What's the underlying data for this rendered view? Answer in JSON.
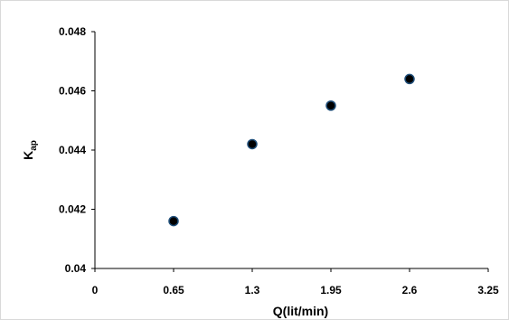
{
  "chart_data": {
    "type": "scatter",
    "title": "",
    "xlabel": "Q(lit/min)",
    "ylabel_main": "K",
    "ylabel_sub": "ap",
    "xlim": [
      0,
      3.25
    ],
    "ylim": [
      0.04,
      0.048
    ],
    "x_ticks": [
      "0",
      "0.65",
      "1.3",
      "1.95",
      "2.6",
      "3.25"
    ],
    "x_tick_values": [
      0,
      0.65,
      1.3,
      1.95,
      2.6,
      3.25
    ],
    "y_ticks": [
      "0.04",
      "0.042",
      "0.044",
      "0.046",
      "0.048"
    ],
    "y_tick_values": [
      0.04,
      0.042,
      0.044,
      0.046,
      0.048
    ],
    "grid": false,
    "legend": "none",
    "series": [
      {
        "x": [
          0.65,
          1.3,
          1.95,
          2.6
        ],
        "y": [
          0.0416,
          0.0442,
          0.0455,
          0.0464
        ]
      }
    ],
    "colors": {
      "marker_fill": "#000000",
      "marker_stroke": "#1f4e79",
      "axis": "#000000"
    }
  }
}
